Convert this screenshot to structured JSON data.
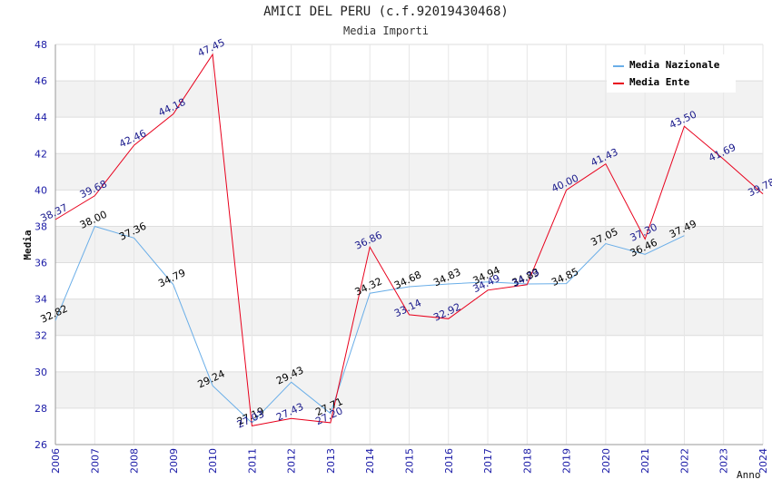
{
  "chart_data": {
    "type": "line",
    "title": "AMICI DEL PERU (c.f.92019430468)",
    "subtitle": "Media Importi",
    "xlabel": "Anno",
    "ylabel": "Media",
    "x": [
      2006,
      2007,
      2008,
      2009,
      2010,
      2011,
      2012,
      2013,
      2014,
      2015,
      2016,
      2017,
      2018,
      2019,
      2020,
      2021,
      2022,
      2023,
      2024
    ],
    "xlim": [
      2006,
      2024
    ],
    "ylim": [
      26,
      48
    ],
    "yticks": [
      26,
      28,
      30,
      32,
      34,
      36,
      38,
      40,
      42,
      44,
      46,
      48
    ],
    "grid": "horizontal bands",
    "legend_position": "top-right",
    "series": [
      {
        "name": "Media Nazionale",
        "color": "#6aaee8",
        "label_color": "#000000",
        "x": [
          2006,
          2007,
          2008,
          2009,
          2010,
          2011,
          2012,
          2013,
          2014,
          2015,
          2016,
          2017,
          2018,
          2019,
          2020,
          2021,
          2022
        ],
        "values": [
          32.82,
          38.0,
          37.36,
          34.79,
          29.24,
          27.19,
          29.43,
          27.71,
          34.32,
          34.68,
          34.83,
          34.94,
          34.83,
          34.85,
          37.05,
          36.46,
          37.49
        ],
        "labels": [
          "32.82",
          "38.00",
          "37.36",
          "34.79",
          "29.24",
          "27.19",
          "29.43",
          "27.71",
          "34.32",
          "34.68",
          "34.83",
          "34.94",
          "34.83",
          "34.85",
          "37.05",
          "36.46",
          "37.49"
        ]
      },
      {
        "name": "Media Ente",
        "color": "#e8001c",
        "label_color": "#1a1a8c",
        "x": [
          2006,
          2007,
          2008,
          2009,
          2010,
          2011,
          2012,
          2013,
          2014,
          2015,
          2016,
          2017,
          2018,
          2019,
          2020,
          2021,
          2022,
          2023,
          2024
        ],
        "values": [
          38.37,
          39.68,
          42.46,
          44.18,
          47.45,
          27.03,
          27.43,
          27.2,
          36.86,
          33.14,
          32.92,
          34.49,
          34.79,
          40.0,
          41.43,
          37.3,
          43.5,
          41.69,
          39.78
        ],
        "labels": [
          "38.37",
          "39.68",
          "42.46",
          "44.18",
          "47.45",
          "27.03",
          "27.43",
          "27.20",
          "36.86",
          "33.14",
          "32.92",
          "34.49",
          "34.79",
          "40.00",
          "41.43",
          "37.30",
          "43.50",
          "41.69",
          "39.78"
        ]
      }
    ]
  }
}
